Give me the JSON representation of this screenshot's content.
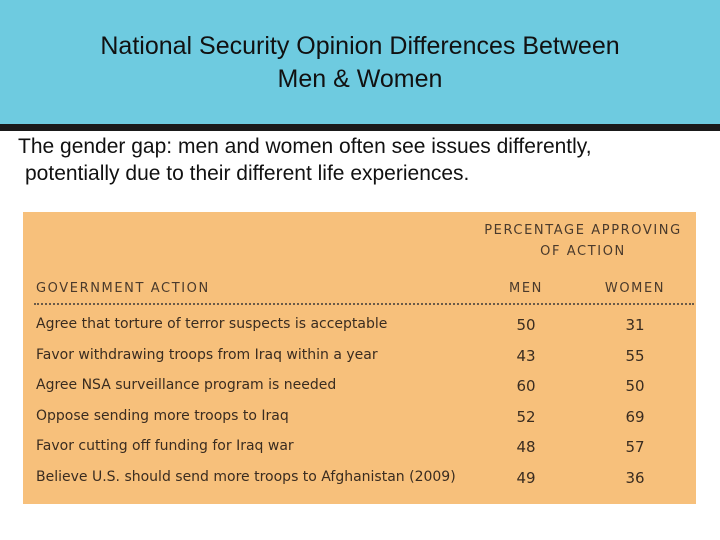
{
  "header": {
    "title_line1": "National Security Opinion Differences Between",
    "title_line2": "Men & Women"
  },
  "subtitle": {
    "line1": "The gender gap: men and women often see issues differently,",
    "line2": "potentially due to their different life experiences."
  },
  "table": {
    "group_header_line1": "PERCENTAGE APPROVING",
    "group_header_line2": "OF ACTION",
    "columns": [
      "GOVERNMENT ACTION",
      "MEN",
      "WOMEN"
    ],
    "rows": [
      {
        "action": "Agree that torture of terror suspects is acceptable",
        "men": "50",
        "women": "31"
      },
      {
        "action": "Favor withdrawing troops from Iraq within a year",
        "men": "43",
        "women": "55"
      },
      {
        "action": "Agree NSA surveillance program is needed",
        "men": "60",
        "women": "50"
      },
      {
        "action": "Oppose sending more troops to Iraq",
        "men": "52",
        "women": "69"
      },
      {
        "action": "Favor cutting off funding for Iraq war",
        "men": "48",
        "women": "57"
      },
      {
        "action": "Believe U.S. should send more troops to Afghanistan (2009)",
        "men": "49",
        "women": "36"
      }
    ]
  },
  "colors": {
    "header_bg": "#6ecbe0",
    "panel_bg": "#f7c07b",
    "rule": "#1a1a1a"
  }
}
